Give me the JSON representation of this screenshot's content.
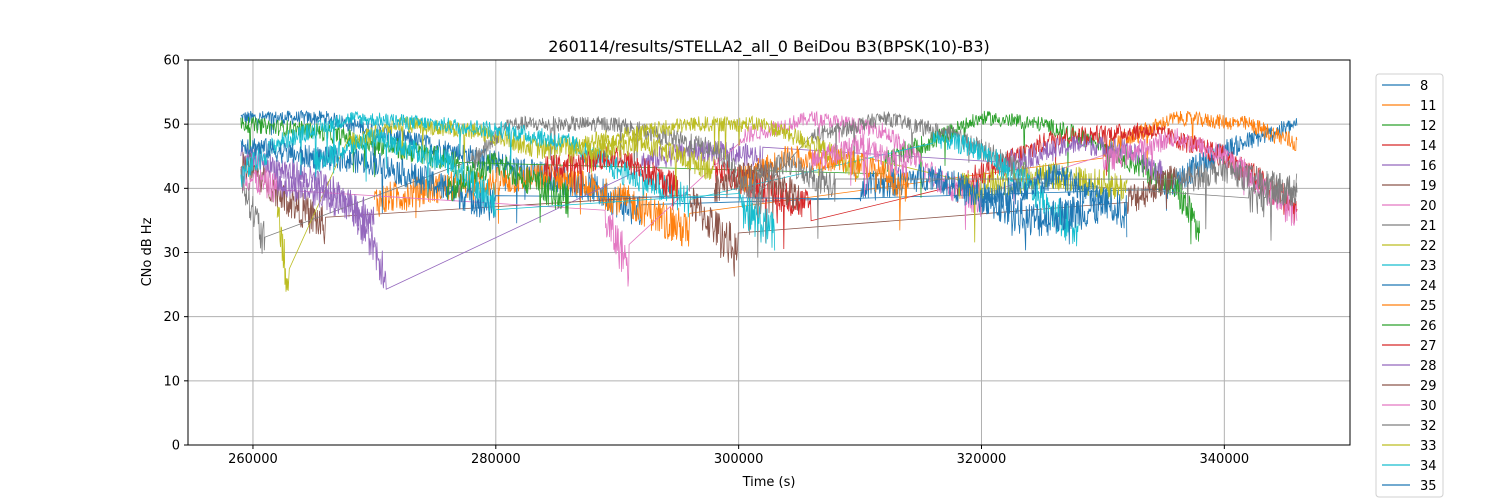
{
  "chart_data": {
    "type": "line",
    "title": "260114/results/STELLA2_all_0 BeiDou B3(BPSK(10)-B3)",
    "xlabel": "Time (s)",
    "ylabel": "CNo dB Hz",
    "xlim": [
      254650,
      350350
    ],
    "ylim": [
      0,
      60
    ],
    "xticks": [
      260000,
      280000,
      300000,
      320000,
      340000
    ],
    "yticks": [
      0,
      10,
      20,
      30,
      40,
      50,
      60
    ],
    "grid": true,
    "legend_placement": "outside-right",
    "colors": [
      "#1f77b4",
      "#ff7f0e",
      "#2ca02c",
      "#d62728",
      "#9467bd",
      "#8c564b",
      "#e377c2",
      "#7f7f7f",
      "#bcbd22",
      "#17becf"
    ],
    "series": [
      {
        "name": "8",
        "passes": [
          [
            [
              259000,
              51
            ],
            [
              266000,
              51
            ],
            [
              272000,
              48
            ],
            [
              280000,
              44
            ],
            [
              288000,
              40
            ],
            [
              292000,
              36
            ]
          ],
          [
            [
              335000,
              40
            ],
            [
              340000,
              46
            ],
            [
              346000,
              50
            ]
          ]
        ]
      },
      {
        "name": "11",
        "passes": [
          [
            [
              270000,
              38
            ],
            [
              275000,
              40
            ],
            [
              285000,
              42
            ],
            [
              292000,
              37
            ],
            [
              296000,
              33
            ]
          ],
          [
            [
              330000,
              46
            ],
            [
              336000,
              51
            ],
            [
              342000,
              50
            ],
            [
              346000,
              47
            ]
          ]
        ]
      },
      {
        "name": "12",
        "passes": [
          [
            [
              259000,
              50
            ],
            [
              265000,
              49
            ],
            [
              270000,
              47
            ],
            [
              277000,
              44
            ]
          ],
          [
            [
              312000,
              44
            ],
            [
              320000,
              51
            ],
            [
              325000,
              50
            ],
            [
              330000,
              47
            ],
            [
              336000,
              40
            ],
            [
              338000,
              33
            ]
          ]
        ]
      },
      {
        "name": "14",
        "passes": [
          [
            [
              298000,
              43
            ],
            [
              302000,
              40
            ],
            [
              306000,
              37
            ]
          ],
          [
            [
              318000,
              40
            ],
            [
              326000,
              48
            ],
            [
              334000,
              49
            ],
            [
              340000,
              45
            ],
            [
              346000,
              37
            ]
          ]
        ]
      },
      {
        "name": "16",
        "passes": [
          [
            [
              259000,
              45
            ],
            [
              264000,
              42
            ],
            [
              268000,
              38
            ],
            [
              271000,
              27
            ]
          ],
          [
            [
              292000,
              44
            ],
            [
              296000,
              46
            ],
            [
              302000,
              45
            ]
          ],
          [
            [
              322000,
              44
            ],
            [
              328000,
              47
            ],
            [
              332000,
              46
            ],
            [
              335000,
              42
            ]
          ]
        ]
      },
      {
        "name": "19",
        "passes": [
          [
            [
              259000,
              44
            ],
            [
              263000,
              38
            ],
            [
              266000,
              34
            ]
          ],
          [
            [
              296000,
              38
            ],
            [
              300000,
              30
            ]
          ],
          [
            [
              332000,
              38
            ],
            [
              336000,
              42
            ]
          ]
        ]
      },
      {
        "name": "20",
        "passes": [
          [
            [
              259000,
              42
            ],
            [
              262000,
              40
            ]
          ],
          [
            [
              289000,
              35
            ],
            [
              291000,
              28
            ]
          ],
          [
            [
              300000,
              48
            ],
            [
              306000,
              51
            ],
            [
              312000,
              49
            ],
            [
              316000,
              42
            ],
            [
              320000,
              38
            ]
          ],
          [
            [
              330000,
              44
            ],
            [
              336000,
              48
            ],
            [
              340000,
              45
            ],
            [
              346000,
              36
            ]
          ]
        ]
      },
      {
        "name": "21",
        "passes": [
          [
            [
              259000,
              42
            ],
            [
              261000,
              31
            ]
          ],
          [
            [
              278000,
              44
            ],
            [
              281000,
              50
            ],
            [
              290000,
              50
            ],
            [
              298000,
              46
            ],
            [
              302000,
              38
            ]
          ],
          [
            [
              306000,
              48
            ],
            [
              312000,
              51
            ],
            [
              318000,
              48
            ],
            [
              324000,
              42
            ]
          ],
          [
            [
              342000,
              38
            ],
            [
              346000,
              40
            ]
          ]
        ]
      },
      {
        "name": "22",
        "passes": [
          [
            [
              262000,
              38
            ],
            [
              263000,
              23
            ]
          ],
          [
            [
              268000,
              47
            ],
            [
              272000,
              50
            ],
            [
              278000,
              49
            ],
            [
              284000,
              46
            ],
            [
              290000,
              48
            ],
            [
              296000,
              50
            ],
            [
              302000,
              50
            ],
            [
              306000,
              47
            ],
            [
              310000,
              43
            ]
          ],
          [
            [
              318000,
              40
            ],
            [
              326000,
              42
            ],
            [
              332000,
              40
            ]
          ]
        ]
      },
      {
        "name": "23",
        "passes": [
          [
            [
              259000,
              42
            ],
            [
              262000,
              47
            ],
            [
              268000,
              51
            ],
            [
              275000,
              50
            ],
            [
              281000,
              49
            ],
            [
              286000,
              47
            ],
            [
              290000,
              43
            ],
            [
              296000,
              38
            ]
          ],
          [
            [
              316000,
              48
            ],
            [
              320000,
              46
            ],
            [
              324000,
              40
            ],
            [
              328000,
              33
            ]
          ]
        ]
      },
      {
        "name": "24",
        "passes": [
          [
            [
              259000,
              47
            ],
            [
              264000,
              45
            ],
            [
              270000,
              44
            ],
            [
              276000,
              40
            ],
            [
              280000,
              37
            ]
          ],
          [
            [
              310000,
              40
            ],
            [
              316000,
              42
            ],
            [
              324000,
              35
            ],
            [
              330000,
              37
            ]
          ]
        ]
      },
      {
        "name": "25",
        "passes": [
          [
            [
              300000,
              41
            ],
            [
              304000,
              45
            ],
            [
              310000,
              44
            ],
            [
              314000,
              40
            ]
          ]
        ]
      },
      {
        "name": "26",
        "passes": [
          [
            [
              276000,
              40
            ],
            [
              280000,
              44
            ],
            [
              286000,
              38
            ]
          ]
        ]
      },
      {
        "name": "27",
        "passes": [
          [
            [
              284000,
              43
            ],
            [
              290000,
              45
            ],
            [
              295000,
              40
            ]
          ]
        ]
      },
      {
        "name": "28",
        "passes": [
          [
            [
              262000,
              41
            ],
            [
              266000,
              39
            ],
            [
              270000,
              35
            ]
          ]
        ]
      },
      {
        "name": "29",
        "passes": [
          [
            [
              298000,
              40
            ],
            [
              302000,
              43
            ],
            [
              305000,
              38
            ]
          ]
        ]
      },
      {
        "name": "30",
        "passes": [
          [
            [
              306000,
              44
            ],
            [
              310000,
              47
            ],
            [
              314000,
              43
            ]
          ]
        ]
      },
      {
        "name": "32",
        "passes": [
          [
            [
              300000,
              40
            ],
            [
              304000,
              44
            ],
            [
              308000,
              40
            ]
          ],
          [
            [
              336000,
              41
            ],
            [
              340000,
              43
            ],
            [
              346000,
              39
            ]
          ]
        ]
      },
      {
        "name": "33",
        "passes": [
          [
            [
              286000,
              45
            ],
            [
              292000,
              47
            ],
            [
              298000,
              43
            ]
          ]
        ]
      },
      {
        "name": "34",
        "passes": [
          [
            [
              265000,
              44
            ],
            [
              270000,
              48
            ],
            [
              276000,
              44
            ],
            [
              280000,
              38
            ]
          ],
          [
            [
              300000,
              37
            ],
            [
              303000,
              33
            ]
          ]
        ]
      },
      {
        "name": "35",
        "passes": [
          [
            [
              320000,
              38
            ],
            [
              326000,
              42
            ],
            [
              332000,
              36
            ]
          ]
        ]
      }
    ]
  }
}
